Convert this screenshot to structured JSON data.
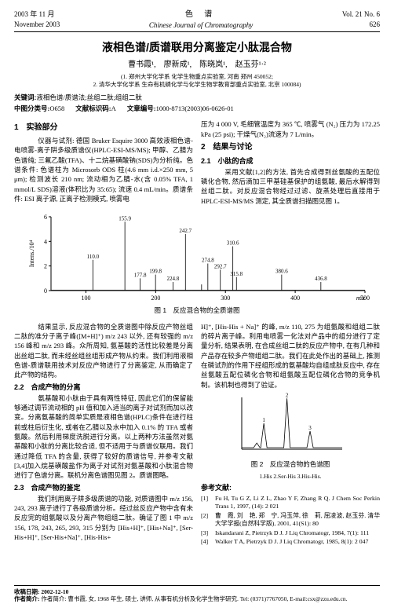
{
  "header": {
    "date_cn": "2003 年 11 月",
    "date_en": "November 2003",
    "journal_cn": "色 谱",
    "journal_en": "Chinese Journal of Chromatography",
    "vol": "Vol. 21 No. 6",
    "page": "626"
  },
  "title": "液相色谱/质谱联用分离鉴定小肽混合物",
  "authors": "曹书霞¹,　廖新成¹,　陈晓岚¹,　赵玉芬¹·²",
  "affil1": "(1. 郑州大学化学系 化学生物重点实验室, 河南 郑州 450052;",
  "affil2": "2. 清华大学化学系 生命有机磷化学与化学生物学教育部重点实验室, 北京 100084)",
  "keywords_label": "关键词:",
  "keywords": "液相色谱/质谱法;丝组二肽;组组二肽",
  "class_label": "中图分类号:",
  "class_val": "O658",
  "doc_label": "文献标识码:",
  "doc_val": "A",
  "art_label": "文章编号:",
  "art_val": "1000-8713(2003)06-0626-01",
  "sec1": "1　实验部分",
  "left1": "　　仪器与试剂: 德国 Bruker Esquire 3000 高效液相色谱-电喷雾-离子阱多级质谱仪(HPLC-ESI-MS/MS); 甲醇、乙腈为色谱纯; 三氟乙酸(TFA)、十二烷基磺酸钠(SDS)为分析纯。色谱条件: 色谱柱为 Microsorb ODS 柱(4.6 mm i.d.×250 mm, 5 μm); 检测波长 210 nm; 流动相为乙腈-水(含 0.05% TFA, 1 mmol/L SDS)溶液(体积比为 35:65); 流速 0.4 mL/min。质谱条件: ESI 离子源, 正离子检测模式, 喷雾电",
  "right1": "压为 4 000 V, 毛细管温度为 365 ℃, 喷雾气 (N₂) 压力为 172.25 kPa (25 psi); 干燥气(N₂)流速为 7 L/min。",
  "sec2": "2　结果与讨论",
  "sec21": "2.1　小肽的合成",
  "right2": "　　采用文献[1,2]的方法, 首先合成得到丝氨酸的五配位磷化合物, 然后滴加三甲基硅基保护的组氨酸, 最后水解得到丝组二肽。对反应混合物经过过滤、旋蒸处理后直接用于 HPLC-ESI-MS/MS 测定, 其全质谱扫描图见图 1。",
  "chart1": {
    "type": "line-spectrum",
    "xlim": [
      50,
      500
    ],
    "ylim": [
      0,
      6
    ],
    "xticks": [
      100,
      200,
      300,
      400,
      500
    ],
    "yticks": [
      0,
      2,
      4,
      6
    ],
    "ylabel": "Intens./10⁴",
    "xlabel": "m/z",
    "background_color": "#ffffff",
    "line_color": "#000000",
    "line_width": 0.8,
    "label_fontsize": 8,
    "axis_fontsize": 8,
    "peaks": [
      {
        "mz": 110.0,
        "intens": 2.5,
        "label": "110.0"
      },
      {
        "mz": 155.9,
        "intens": 5.6,
        "label": "155.9"
      },
      {
        "mz": 177.8,
        "intens": 1.0,
        "label": "177.8"
      },
      {
        "mz": 199.8,
        "intens": 1.3,
        "label": "199.8"
      },
      {
        "mz": 224.8,
        "intens": 0.7,
        "label": "224.8"
      },
      {
        "mz": 242.7,
        "intens": 4.6,
        "label": "242.7"
      },
      {
        "mz": 265.8,
        "intens": 0.5,
        "label": ""
      },
      {
        "mz": 274.8,
        "intens": 2.2,
        "label": "274.8"
      },
      {
        "mz": 292.7,
        "intens": 1.7,
        "label": "292.7"
      },
      {
        "mz": 310.6,
        "intens": 3.6,
        "label": "310.6"
      },
      {
        "mz": 315.8,
        "intens": 1.1,
        "label": "315.8"
      },
      {
        "mz": 380.6,
        "intens": 1.3,
        "label": "380.6"
      },
      {
        "mz": 436.8,
        "intens": 0.7,
        "label": "436.8"
      }
    ]
  },
  "fig1_caption": "图 1　反应混合物的全质谱图",
  "left2a": "　　结果显示, 反应混合物的全质谱图中除反应产物丝组二肽的准分子离子峰([M+H]⁺) m/z 243 以外, 还有较强的 m/z 156 峰和 m/z 293 峰。众所周知, 氨基酸的活性比较差是分离出丝组二肽, 而未经丝组丝组形成产物从约束。我们利用液相色谱-质谱联用技术对反应产物进行了分离鉴定, 从而确定了此产物的结构。",
  "sec22": "2.2　合成产物的分离",
  "left2b": "　　氨基酸和小肽由于具有两性特征, 因此它们的保留能够通过调节流动相的 pH 值和加入适当的离子对试剂而加以改变。分离氨基酸的简单实质是液相色谱(HPLC)条件在进行柱前或柱后衍生化, 或者在乙腈以及水中加入 0.1% 的 TFA 或者氨酸。然后利用梯度洗脱进行分离。以上两种方法虽然对氨基酸和小肽的分离比较合适, 但不适用于与质谱仪联用。我们通过降低 TFA 的含量, 获得了较好的质谱信号, 并参考文献[3,4]加入烷基磺酸盐作为离子对试剂对氨基酸和小肽混合物进行了色谱分离。联机分离色谱图见图 2。质谱图略。",
  "sec23": "2.3　合成产物的鉴定",
  "left2c": "　　我们利用离子阱多级质谱的功能, 对质谱图中 m/z 156, 243, 293 离子进行了各级质谱分析。经过丝反应产物中含有未反应完的组氨酸以及分离产物组组二肽。确证了图 1 中 m/z 156, 178, 243, 265, 293, 315 分别为 [His+H]⁺, [His+Na]⁺, [Ser-His+H]⁺, [Ser-His+Na]⁺, [His-His+",
  "right3": "H]⁺, [His-His + Na]⁺ 的峰, m/z 110, 275 为组氨酸和组组二肽的碎片离子峰。利用电喷雾一化法对产品中的组分进行了定量分析, 结果表明, 在合成丝组二肽的反应产物中, 在有几种和产品存在较多产物组组二肽。我们在此处作出的基础上, 推测在磷试剂的作用下经组形成的氨基酸均自组成肽反应中, 存在丝氨酸五配位磷化合物和组氨酸五配位磷化合物的竞争机制。该机制也得到了验证。",
  "chart2": {
    "type": "chromatogram",
    "background_color": "#ffffff",
    "line_color": "#000000",
    "peaks_rel": [
      {
        "x": 0.15,
        "h": 0.12
      },
      {
        "x": 0.22,
        "h": 0.5,
        "label": "1"
      },
      {
        "x": 0.45,
        "h": 0.98,
        "label": "2"
      },
      {
        "x": 0.68,
        "h": 0.35,
        "label": "3"
      }
    ]
  },
  "fig2_caption": "图 2　反应混合物的色谱图",
  "fig2_sub": "1.His  2.Ser-His  3.His-His.",
  "refs_title": "参考文献:",
  "refs": [
    "Fu H, Tu G Z, Li Z L, Zhao Y F, Zhang R Q. J Chem Soc Perkin Trans 1, 1997, (14): 2 021",
    "曹　霞, 刘　艳, 郑　宁, 冯玉萍, 徐　莉, 屈凌波, 赵玉芬. 清华大学学报(自然科学版), 2001, 41(S1): 80",
    "Iskandarani Z, Pietrzyk D J. J Liq Chromatogr, 1984, 7(1): 111",
    "Walker T A, Pietrzyk D J. J Liq Chromatogr, 1985, 8(1): 2 047"
  ],
  "footer1": "收稿日期: 2002-12-10",
  "footer2": "作者简介: 曹书霞, 女, 1968 年生, 硕士, 讲师, 从事有机分析及化学生物学研究. Tel: (0371)7767050, E-mail:csx@zzu.edu.cn."
}
